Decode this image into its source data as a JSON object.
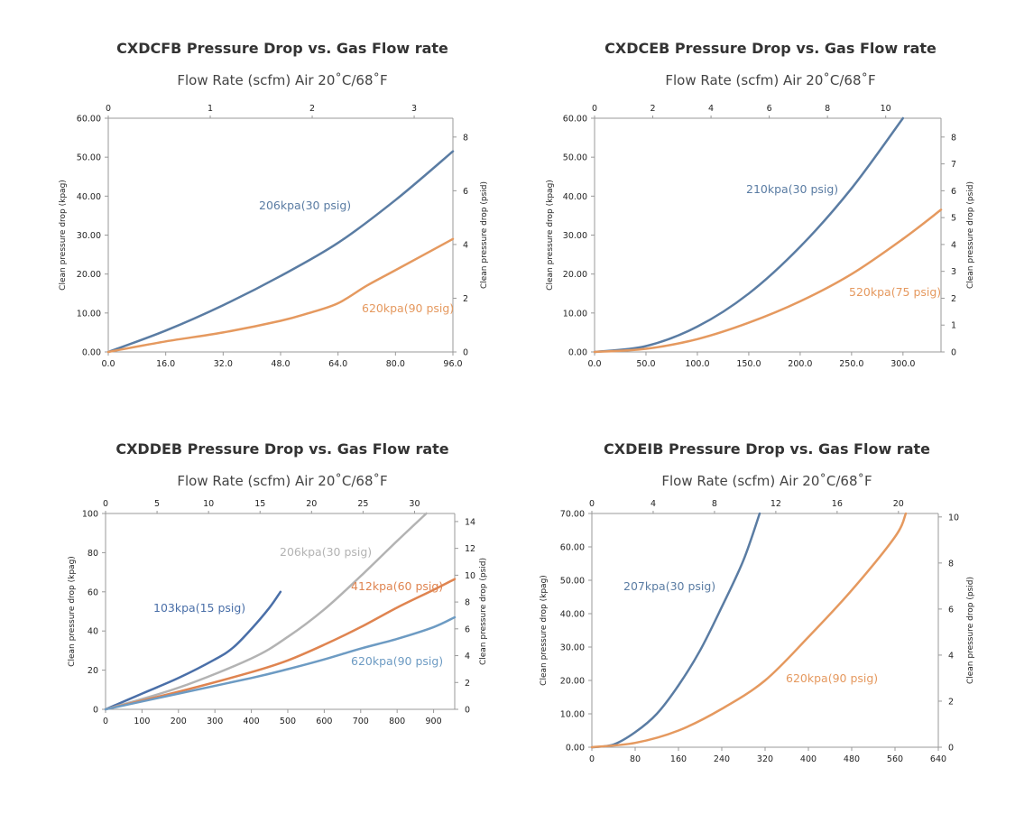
{
  "chart_data": [
    {
      "type": "line",
      "title": "CXDCFB Pressure Drop vs. Gas Flow rate",
      "top_axis_label": "Flow Rate (scfm) Air 20˚C/68˚F",
      "ylabel": "Clean pressure drop (kpag)",
      "y2label": "Clean pressure drop (psid)",
      "xlim": [
        0,
        96
      ],
      "x_ticks": [
        "0.0",
        "16.0",
        "32.0",
        "48.0",
        "64.0",
        "80.0",
        "96.0"
      ],
      "ylim": [
        0,
        60
      ],
      "y_ticks": [
        "0.00",
        "10.00",
        "20.00",
        "30.00",
        "40.00",
        "50.00",
        "60.00"
      ],
      "x2lim": [
        0,
        3.38
      ],
      "x2_ticks": [
        "0",
        "1",
        "2",
        "3"
      ],
      "y2lim": [
        0,
        8.7
      ],
      "y2_ticks": [
        "0",
        "2",
        "4",
        "6",
        "8"
      ],
      "grid": false,
      "series": [
        {
          "name": "206kpa(30 psig)",
          "color": "#5a7ca3",
          "x": [
            0,
            16,
            32,
            48,
            64,
            80,
            96
          ],
          "y": [
            0,
            5.5,
            12,
            19.5,
            28,
            39,
            51.5
          ]
        },
        {
          "name": "620kpa(90 psig)",
          "color": "#e5995f",
          "x": [
            0,
            16,
            32,
            48,
            56,
            64,
            72,
            80,
            96
          ],
          "y": [
            0,
            2.7,
            5,
            8,
            10,
            12.5,
            17,
            21,
            29
          ]
        }
      ]
    },
    {
      "type": "line",
      "title": "CXDCEB Pressure Drop vs. Gas Flow rate",
      "top_axis_label": "Flow Rate (scfm) Air 20˚C/68˚F",
      "ylabel": "Clean pressure drop (kpag)",
      "y2label": "Clean pressure drop (psid)",
      "xlim": [
        0,
        337
      ],
      "x_ticks": [
        "0.0",
        "50.0",
        "100.0",
        "150.0",
        "200.0",
        "250.0",
        "300.0"
      ],
      "ylim": [
        0,
        60
      ],
      "y_ticks": [
        "0.00",
        "10.00",
        "20.00",
        "30.00",
        "40.00",
        "50.00",
        "60.00"
      ],
      "x2lim": [
        0,
        11.9
      ],
      "x2_ticks": [
        "0",
        "2",
        "4",
        "6",
        "8",
        "10"
      ],
      "y2lim": [
        0,
        8.7
      ],
      "y2_ticks": [
        "0",
        "1",
        "2",
        "3",
        "4",
        "5",
        "6",
        "7",
        "8"
      ],
      "grid": false,
      "series": [
        {
          "name": "210kpa(30 psig)",
          "color": "#5a7ca3",
          "x": [
            0,
            50,
            100,
            150,
            200,
            250,
            300
          ],
          "y": [
            0,
            1.5,
            6.5,
            15,
            27,
            42,
            60
          ]
        },
        {
          "name": "520kpa(75 psig)",
          "color": "#e5995f",
          "x": [
            0,
            50,
            100,
            150,
            200,
            250,
            300,
            337
          ],
          "y": [
            0,
            0.8,
            3.3,
            7.5,
            13,
            20,
            29,
            36.5
          ]
        }
      ]
    },
    {
      "type": "line",
      "title": "CXDDEB Pressure Drop vs. Gas Flow rate",
      "top_axis_label": "Flow Rate (scfm) Air 20˚C/68˚F",
      "ylabel": "Clean pressure drop (kpag)",
      "y2label": "Clean pressure drop (psid)",
      "xlim": [
        0,
        958
      ],
      "x_ticks": [
        "0",
        "100",
        "200",
        "300",
        "400",
        "500",
        "600",
        "700",
        "800",
        "900"
      ],
      "ylim": [
        0,
        100
      ],
      "y_ticks": [
        "0",
        "20",
        "40",
        "60",
        "80",
        "100"
      ],
      "x2lim": [
        0,
        33.9
      ],
      "x2_ticks": [
        "0",
        "5",
        "10",
        "15",
        "20",
        "25",
        "30"
      ],
      "y2lim": [
        0,
        14.6
      ],
      "y2_ticks": [
        "0",
        "2",
        "4",
        "6",
        "8",
        "10",
        "12",
        "14"
      ],
      "grid": false,
      "series": [
        {
          "name": "103kpa(15 psig)",
          "color": "#4a6fa8",
          "x": [
            0,
            100,
            200,
            300,
            350,
            400,
            450,
            480
          ],
          "y": [
            0,
            8,
            16,
            25.5,
            31.5,
            41,
            52,
            60
          ]
        },
        {
          "name": "206kpa(30 psig)",
          "color": "#b3b3b3",
          "x": [
            0,
            200,
            400,
            500,
            600,
            700,
            800,
            880
          ],
          "y": [
            0,
            11,
            26,
            37,
            51,
            68,
            86,
            100
          ]
        },
        {
          "name": "412kpa(60 psig)",
          "color": "#df8450",
          "x": [
            0,
            200,
            400,
            500,
            600,
            700,
            800,
            900,
            958
          ],
          "y": [
            0,
            9,
            19,
            25,
            33,
            42,
            52,
            61,
            66.5
          ]
        },
        {
          "name": "620kpa(90 psig)",
          "color": "#6d9bc3",
          "x": [
            0,
            200,
            400,
            500,
            600,
            700,
            800,
            900,
            958
          ],
          "y": [
            0,
            8,
            16,
            20.5,
            25.5,
            31,
            36,
            42,
            47
          ]
        }
      ]
    },
    {
      "type": "line",
      "title": "CXDEIB Pressure Drop vs. Gas Flow rate",
      "top_axis_label": "Flow Rate (scfm) Air 20˚C/68˚F",
      "ylabel": "Clean pressure drop (kpag)",
      "y2label": "Clean pressure drop (psid)",
      "xlim": [
        0,
        640
      ],
      "x_ticks": [
        "0",
        "80",
        "160",
        "240",
        "320",
        "400",
        "480",
        "560",
        "640"
      ],
      "ylim": [
        0,
        70
      ],
      "y_ticks": [
        "0.00",
        "10.00",
        "20.00",
        "30.00",
        "40.00",
        "50.00",
        "60.00",
        "70.00"
      ],
      "x2lim": [
        0,
        22.6
      ],
      "x2_ticks": [
        "0",
        "4",
        "8",
        "12",
        "16",
        "20"
      ],
      "y2lim": [
        0,
        10.15
      ],
      "y2_ticks": [
        "0",
        "2",
        "4",
        "6",
        "8",
        "10"
      ],
      "grid": false,
      "series": [
        {
          "name": "207kpa(30 psig)",
          "color": "#5a7ca3",
          "x": [
            0,
            40,
            80,
            120,
            160,
            200,
            240,
            280,
            310
          ],
          "y": [
            0,
            0.8,
            4.5,
            10,
            18.5,
            29,
            42,
            56,
            70
          ]
        },
        {
          "name": "620kpa(90 psig)",
          "color": "#e5995f",
          "x": [
            0,
            80,
            160,
            240,
            320,
            400,
            480,
            560,
            580
          ],
          "y": [
            0,
            1.3,
            5,
            11.5,
            20,
            33,
            47,
            63,
            70
          ]
        }
      ]
    }
  ]
}
